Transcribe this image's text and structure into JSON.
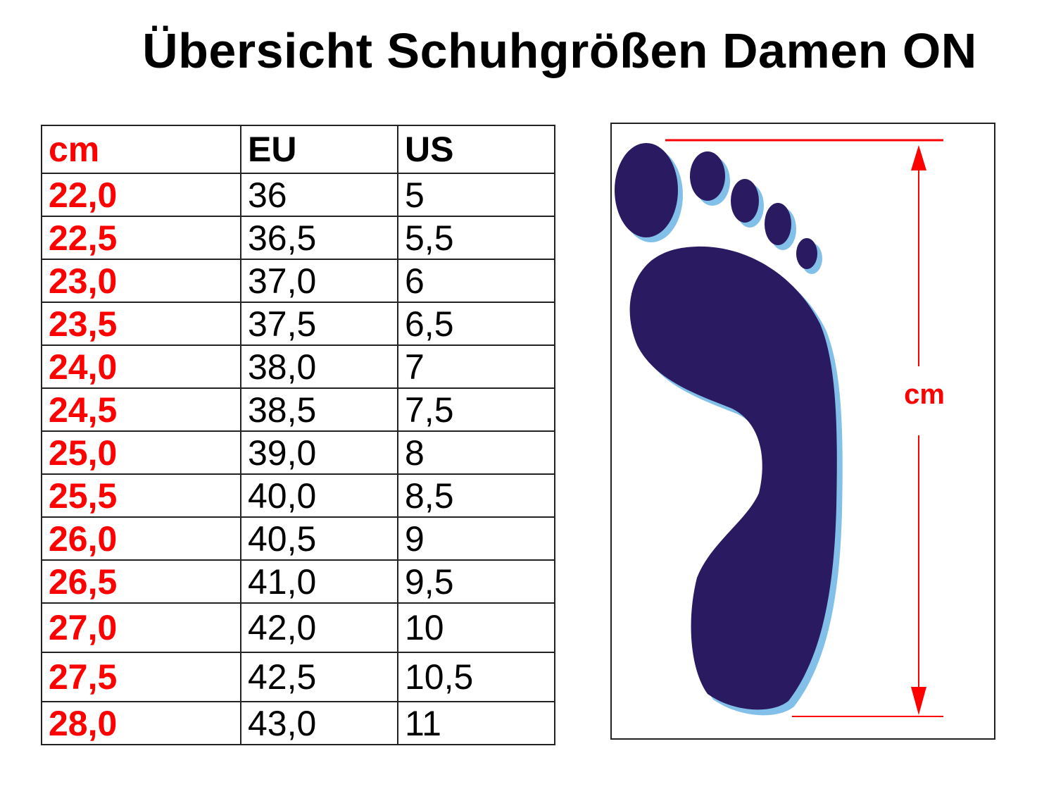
{
  "title": "Übersicht Schuhgrößen Damen ON",
  "table": {
    "headers": [
      "cm",
      "EU",
      "US"
    ],
    "rows": [
      [
        "22,0",
        "36",
        "5"
      ],
      [
        "22,5",
        "36,5",
        "5,5"
      ],
      [
        "23,0",
        "37,0",
        "6"
      ],
      [
        "23,5",
        "37,5",
        "6,5"
      ],
      [
        "24,0",
        "38,0",
        "7"
      ],
      [
        "24,5",
        "38,5",
        "7,5"
      ],
      [
        "25,0",
        "39,0",
        "8"
      ],
      [
        "25,5",
        "40,0",
        "8,5"
      ],
      [
        "26,0",
        "40,5",
        "9"
      ],
      [
        "26,5",
        "41,0",
        "9,5"
      ],
      [
        "27,0",
        "42,0",
        "10"
      ],
      [
        "27,5",
        "42,5",
        "10,5"
      ],
      [
        "28,0",
        "43,0",
        "11"
      ]
    ]
  },
  "diagram": {
    "measure_label": "cm",
    "colors": {
      "foot": "#2a1a62",
      "foot_shadow": "#82c0ea",
      "measure": "#ff0000"
    }
  }
}
